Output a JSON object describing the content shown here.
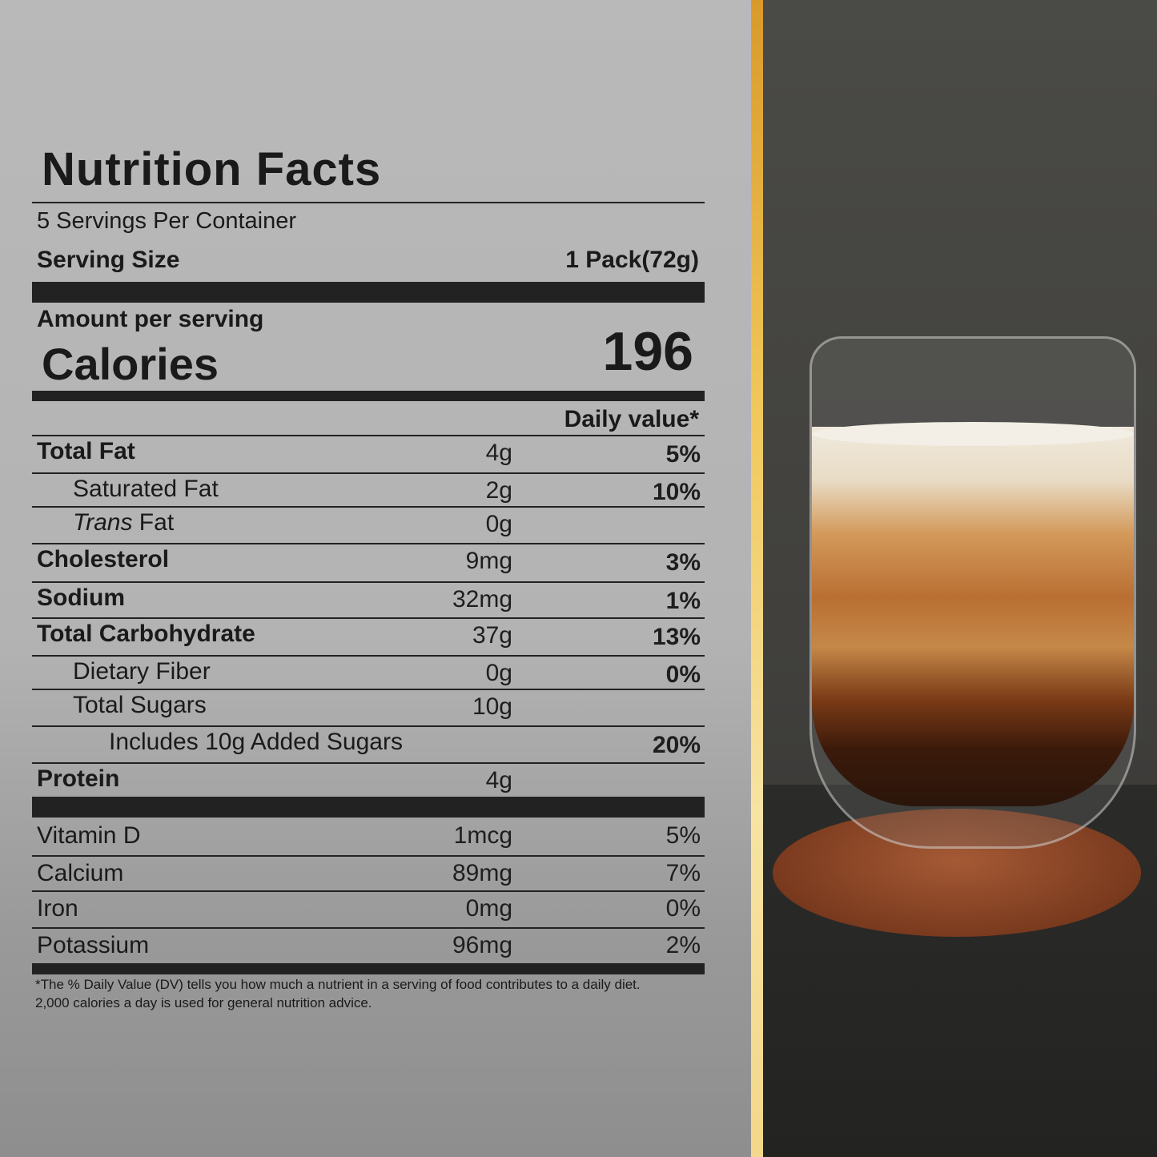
{
  "label": {
    "title": "Nutrition Facts",
    "servings_per_container": "5 Servings Per Container",
    "serving_size_label": "Serving Size",
    "serving_size_value": "1 Pack(72g)",
    "amount_per_serving": "Amount per serving",
    "calories_label": "Calories",
    "calories_value": "196",
    "daily_value_header": "Daily value*",
    "nutrients": [
      {
        "name": "Total Fat",
        "amount": "4g",
        "dv": "5%",
        "bold": true,
        "indent": 0
      },
      {
        "name": "Saturated Fat",
        "amount": "2g",
        "dv": "10%",
        "bold": false,
        "indent": 1
      },
      {
        "name": "Trans",
        "name_suffix": " Fat",
        "amount": "0g",
        "dv": "",
        "bold": false,
        "indent": 1
      },
      {
        "name": "Cholesterol",
        "amount": "9mg",
        "dv": "3%",
        "bold": true,
        "indent": 0
      },
      {
        "name": "Sodium",
        "amount": "32mg",
        "dv": "1%",
        "bold": true,
        "indent": 0
      },
      {
        "name": "Total Carbohydrate",
        "amount": "37g",
        "dv": "13%",
        "bold": true,
        "indent": 0
      },
      {
        "name": "Dietary Fiber",
        "amount": "0g",
        "dv": "0%",
        "bold": false,
        "indent": 1
      },
      {
        "name": "Total Sugars",
        "amount": "10g",
        "dv": "",
        "bold": false,
        "indent": 1
      },
      {
        "name": "Includes 10g Added Sugars",
        "amount": "",
        "dv": "20%",
        "bold": false,
        "indent": 2
      },
      {
        "name": "Protein",
        "amount": "4g",
        "dv": "",
        "bold": true,
        "indent": 0
      }
    ],
    "vitamins": [
      {
        "name": "Vitamin D",
        "amount": "1mcg",
        "dv": "5%"
      },
      {
        "name": "Calcium",
        "amount": "89mg",
        "dv": "7%"
      },
      {
        "name": "Iron",
        "amount": "0mg",
        "dv": "0%"
      },
      {
        "name": "Potassium",
        "amount": "96mg",
        "dv": "2%"
      }
    ],
    "footnote_line1": "*The % Daily Value (DV) tells you how much a nutrient in a serving of food contributes to a daily diet.",
    "footnote_line2": "2,000 calories a day is used for general nutrition advice."
  },
  "colors": {
    "gold_divider": "#f0c75a",
    "label_text": "#1a1a1a",
    "background": "#b5b5b5"
  }
}
